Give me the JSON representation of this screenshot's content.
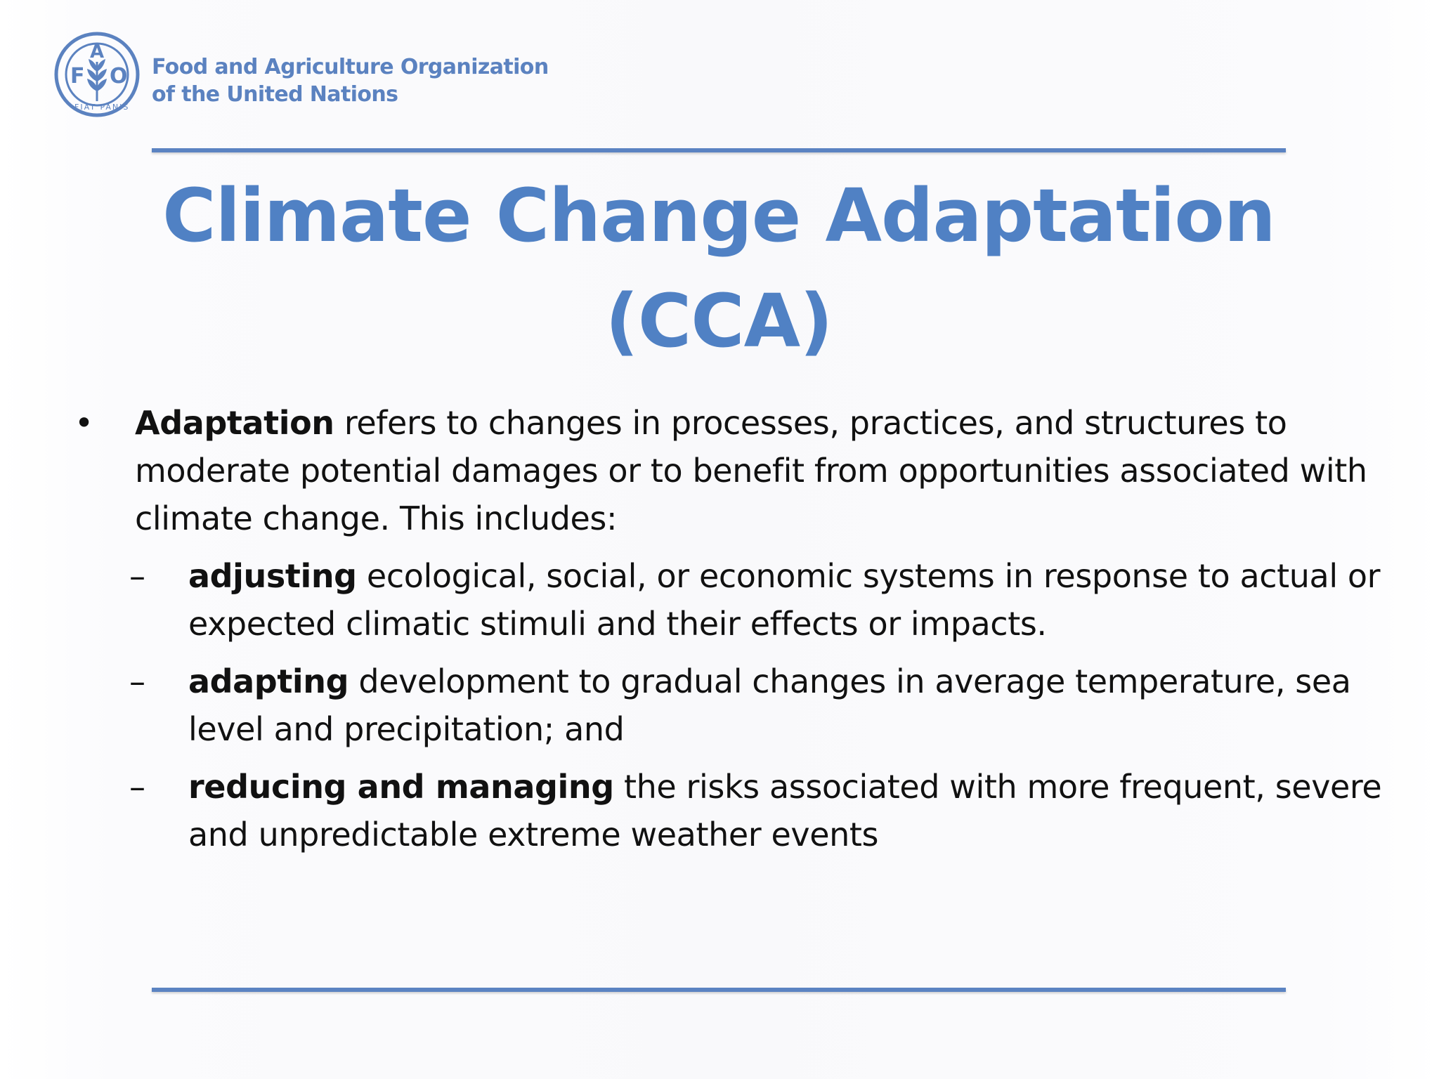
{
  "header": {
    "org_name_line1": "Food and Agriculture Organization",
    "org_name_line2": "of the United Nations",
    "logo": {
      "icon": "fao-emblem-icon",
      "letters": [
        "F",
        "A",
        "O"
      ],
      "motto": "FIAT PANIS",
      "color": "#5b82c0"
    }
  },
  "title": {
    "line1": "Climate Change Adaptation",
    "line2": "(CCA)",
    "color": "#5081c4"
  },
  "content": {
    "bullet_symbol": "•",
    "bullet_bold": "Adaptation",
    "bullet_text": " refers to changes in processes, practices, and structures to moderate potential damages or to benefit from opportunities associated with climate change. This includes:",
    "dash_symbol": "–",
    "subitems": [
      {
        "bold": "adjusting",
        "text": " ecological, social, or economic systems in response to actual or expected climatic stimuli and their effects or impacts."
      },
      {
        "bold": "adapting",
        "text": " development to gradual changes in average temperature, sea level and precipitation; and"
      },
      {
        "bold": "reducing and managing",
        "text": " the risks associated with more frequent, severe and unpredictable extreme weather events"
      }
    ]
  },
  "colors": {
    "accent_rule": "#5b83c2",
    "body_text": "#111111"
  }
}
